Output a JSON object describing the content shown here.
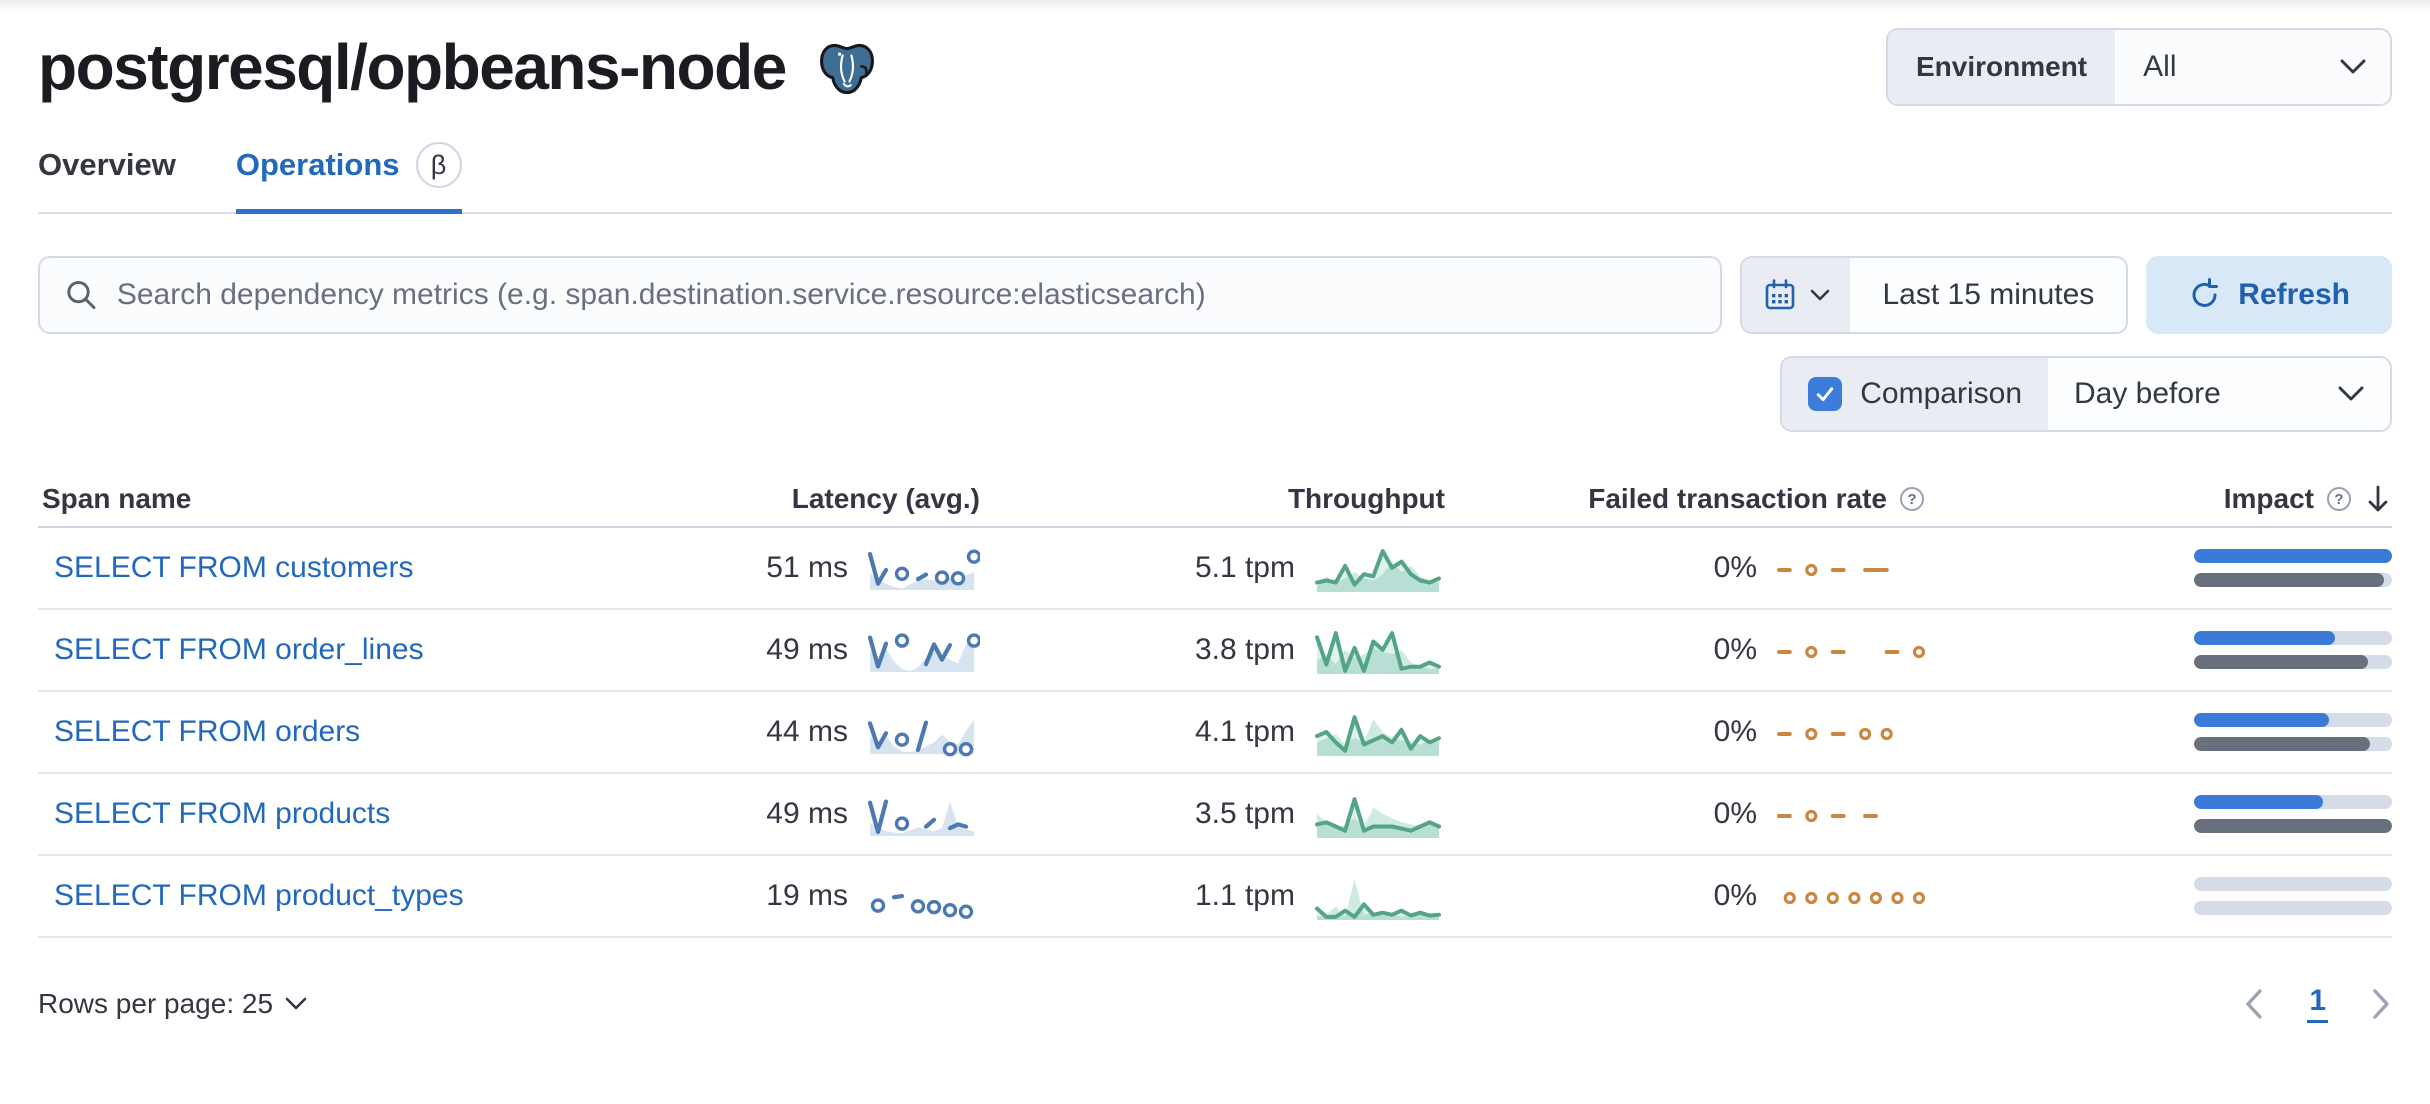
{
  "header": {
    "title": "postgresql/opbeans-node",
    "environment_label": "Environment",
    "environment_value": "All"
  },
  "tabs": [
    {
      "label": "Overview",
      "active": false
    },
    {
      "label": "Operations",
      "active": true,
      "badge": "β"
    }
  ],
  "controls": {
    "search_placeholder": "Search dependency metrics (e.g. span.destination.service.resource:elasticsearch)",
    "time_range": "Last 15 minutes",
    "refresh_label": "Refresh",
    "comparison_label": "Comparison",
    "comparison_checked": true,
    "comparison_value": "Day before"
  },
  "table": {
    "columns": [
      "Span name",
      "Latency (avg.)",
      "Throughput",
      "Failed transaction rate",
      "Impact"
    ],
    "sorted_by": "Impact",
    "sort_direction": "descending",
    "rows": [
      {
        "span_name": "SELECT FROM customers",
        "latency": "51 ms",
        "throughput": "5.1 tpm",
        "failed_rate": "0%",
        "impact_pct": 100,
        "impact_prev_pct": 96,
        "latency_spark": {
          "cur": [
            92,
            14,
            50,
            null,
            40,
            null,
            26,
            38,
            null,
            30,
            null,
            28,
            null,
            85
          ],
          "prev": [
            40,
            24,
            14,
            6,
            2,
            12,
            22,
            26,
            22,
            26,
            30,
            28,
            36,
            44
          ]
        },
        "throughput_spark": {
          "cur": [
            20,
            25,
            20,
            60,
            15,
            40,
            35,
            95,
            55,
            70,
            40,
            25,
            20,
            30
          ],
          "prev": [
            10,
            35,
            20,
            30,
            45,
            30,
            25,
            40,
            70,
            45,
            60,
            35,
            25,
            20
          ]
        },
        "failed_spark": {
          "cur": [
            50,
            50,
            null,
            50,
            null,
            50,
            50,
            null,
            50,
            50,
            50,
            null,
            null,
            null
          ]
        }
      },
      {
        "span_name": "SELECT FROM order_lines",
        "latency": "49 ms",
        "throughput": "3.8 tpm",
        "failed_rate": "0%",
        "impact_pct": 71,
        "impact_prev_pct": 88,
        "latency_spark": {
          "cur": [
            88,
            12,
            72,
            null,
            80,
            null,
            null,
            18,
            70,
            30,
            68,
            null,
            null,
            80
          ],
          "prev": [
            55,
            30,
            60,
            25,
            5,
            0,
            10,
            35,
            55,
            40,
            30,
            20,
            70,
            75
          ]
        },
        "throughput_spark": {
          "cur": [
            85,
            20,
            95,
            5,
            60,
            5,
            75,
            55,
            95,
            10,
            15,
            15,
            25,
            15
          ],
          "prev": [
            30,
            45,
            20,
            55,
            35,
            45,
            60,
            50,
            45,
            55,
            25,
            15,
            10,
            12
          ]
        },
        "failed_spark": {
          "cur": [
            50,
            50,
            null,
            50,
            null,
            50,
            50,
            null,
            null,
            null,
            50,
            50,
            null,
            50
          ]
        }
      },
      {
        "span_name": "SELECT FROM orders",
        "latency": "44 ms",
        "throughput": "4.1 tpm",
        "failed_rate": "0%",
        "impact_pct": 68,
        "impact_prev_pct": 89,
        "latency_spark": {
          "cur": [
            78,
            15,
            52,
            null,
            35,
            null,
            8,
            80,
            null,
            null,
            10,
            null,
            10,
            null
          ],
          "prev": [
            45,
            28,
            45,
            18,
            4,
            2,
            8,
            18,
            28,
            48,
            30,
            22,
            58,
            88
          ]
        },
        "throughput_spark": {
          "cur": [
            45,
            55,
            30,
            10,
            90,
            25,
            35,
            45,
            30,
            60,
            15,
            45,
            30,
            40
          ],
          "prev": [
            30,
            40,
            50,
            25,
            40,
            30,
            85,
            55,
            40,
            35,
            30,
            25,
            35,
            30
          ]
        },
        "failed_spark": {
          "cur": [
            50,
            50,
            null,
            50,
            null,
            50,
            50,
            null,
            50,
            null,
            50,
            null,
            null,
            null
          ]
        }
      },
      {
        "span_name": "SELECT FROM products",
        "latency": "49 ms",
        "throughput": "3.5 tpm",
        "failed_rate": "0%",
        "impact_pct": 65,
        "impact_prev_pct": 100,
        "latency_spark": {
          "cur": [
            85,
            8,
            88,
            null,
            30,
            null,
            null,
            22,
            40,
            null,
            18,
            28,
            22,
            null
          ],
          "prev": [
            32,
            20,
            10,
            6,
            4,
            12,
            20,
            14,
            10,
            18,
            88,
            22,
            14,
            10
          ]
        },
        "throughput_spark": {
          "cur": [
            30,
            35,
            25,
            15,
            90,
            15,
            25,
            25,
            25,
            20,
            15,
            25,
            35,
            25
          ],
          "prev": [
            55,
            35,
            20,
            30,
            45,
            25,
            70,
            55,
            45,
            35,
            30,
            25,
            40,
            30
          ]
        },
        "failed_spark": {
          "cur": [
            50,
            50,
            null,
            50,
            null,
            50,
            50,
            null,
            50,
            50,
            null,
            null,
            null,
            null
          ]
        }
      },
      {
        "span_name": "SELECT FROM product_types",
        "latency": "19 ms",
        "throughput": "1.1 tpm",
        "failed_rate": "0%",
        "impact_pct": 0,
        "impact_prev_pct": 0,
        "latency_spark": {
          "cur": [
            null,
            30,
            null,
            52,
            55,
            null,
            28,
            null,
            26,
            null,
            18,
            null,
            14,
            null
          ],
          "prev": []
        },
        "throughput_spark": {
          "cur": [
            25,
            5,
            5,
            20,
            5,
            35,
            10,
            15,
            10,
            20,
            8,
            15,
            8,
            10
          ],
          "prev": [
            5,
            10,
            30,
            5,
            95,
            10,
            15,
            8,
            10,
            5,
            8,
            10,
            5,
            8
          ]
        },
        "failed_spark": {
          "cur": [
            null,
            50,
            null,
            50,
            null,
            50,
            null,
            50,
            null,
            50,
            null,
            50,
            null,
            50
          ]
        }
      }
    ]
  },
  "footer": {
    "rows_per_page": "Rows per page: 25",
    "page_number": "1"
  },
  "colors": {
    "primary": "#2268BC",
    "impact_blue": "#3B7AD7",
    "impact_gray": "#69707D",
    "latency_blue": "#4C79B0",
    "throughput_green": "#54A586",
    "failed_orange": "#C9873F"
  }
}
